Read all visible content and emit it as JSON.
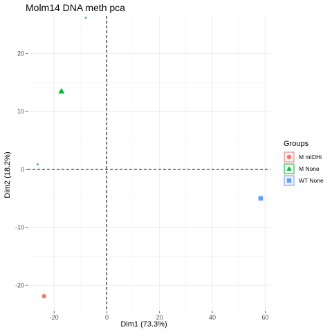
{
  "chart_data": {
    "type": "scatter",
    "title": "Molm14 DNA meth pca",
    "xlabel": "Dim1 (73.3%)",
    "ylabel": "Dim2 (18.2%)",
    "xlim": [
      -30,
      62
    ],
    "ylim": [
      -24.5,
      26.5
    ],
    "x_ticks": [
      -20,
      0,
      20,
      40,
      60
    ],
    "y_ticks": [
      -20,
      -10,
      0,
      10,
      20
    ],
    "grid": true,
    "reference_lines": {
      "x": 0,
      "y": 0,
      "style": "dashed"
    },
    "legend": {
      "title": "Groups",
      "position": "right",
      "entries": [
        {
          "label": "M mIDHi",
          "shape": "circle",
          "color": "#F8766D"
        },
        {
          "label": "M None",
          "shape": "triangle",
          "color": "#00BA38"
        },
        {
          "label": "WT None",
          "shape": "square",
          "color": "#619CFF"
        }
      ]
    },
    "series": [
      {
        "name": "M mIDHi",
        "shape": "circle",
        "color": "#F8766D",
        "points": [
          {
            "x": -23.8,
            "y": -21.9,
            "size": 3.2
          }
        ]
      },
      {
        "name": "M None",
        "shape": "triangle",
        "color": "#00BA38",
        "points": [
          {
            "x": -8.0,
            "y": 26.2,
            "size": 1.5
          },
          {
            "x": -17.2,
            "y": 13.5,
            "size": 4.0
          },
          {
            "x": -26.2,
            "y": 0.9,
            "size": 1.6
          }
        ]
      },
      {
        "name": "WT None",
        "shape": "square",
        "color": "#619CFF",
        "points": [
          {
            "x": 58.3,
            "y": -5.0,
            "size": 3.2
          }
        ]
      }
    ]
  }
}
